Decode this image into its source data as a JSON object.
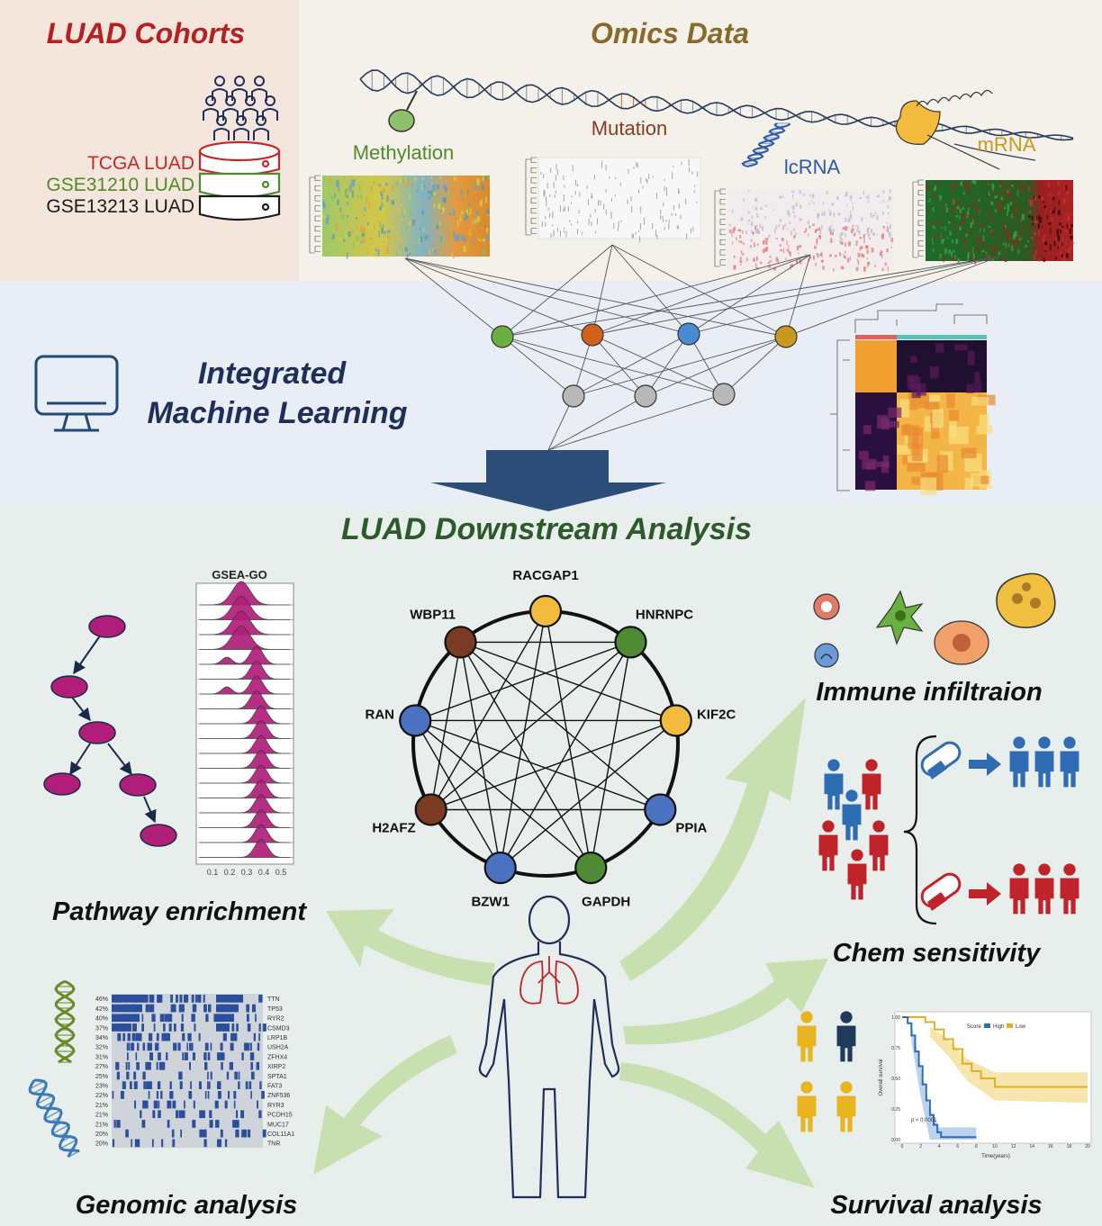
{
  "cohorts": {
    "title": "LUAD Cohorts",
    "items": [
      {
        "label": "TCGA LUAD",
        "color": "#c62828"
      },
      {
        "label": "GSE31210 LUAD",
        "color": "#4f8a2b"
      },
      {
        "label": "GSE13213 LUAD",
        "color": "#1a1a1a"
      }
    ]
  },
  "omics": {
    "title": "Omics Data",
    "labels": {
      "methylation": "Methylation",
      "mutation": "Mutation",
      "lcrna": "lcRNA",
      "mrna": "mRNA"
    }
  },
  "ml": {
    "title_line1": "Integrated",
    "title_line2": "Machine Learning"
  },
  "downstream": {
    "title": "LUAD Downstream Analysis",
    "gsea_title": "GSEA-GO",
    "gsea_ticks": [
      "0.1",
      "0.2",
      "0.3",
      "0.4",
      "0.5"
    ],
    "pathway_label": "Pathway enrichment",
    "immune_label": "Immune infiltraion",
    "chem_label": "Chem sensitivity",
    "genomic_label": "Genomic analysis",
    "survival_label": "Survival analysis"
  },
  "network": {
    "nodes": [
      {
        "label": "RACGAP1",
        "color": "#f2bb3c",
        "angle": 0
      },
      {
        "label": "HNRNPC",
        "color": "#4f8a34",
        "angle": 40
      },
      {
        "label": "KIF2C",
        "color": "#f2bb3c",
        "angle": 80
      },
      {
        "label": "PPIA",
        "color": "#4a72c0",
        "angle": 120
      },
      {
        "label": "GAPDH",
        "color": "#4f8a34",
        "angle": 160
      },
      {
        "label": "BZW1",
        "color": "#4a72c0",
        "angle": 200
      },
      {
        "label": "H2AFZ",
        "color": "#7a3b22",
        "angle": 240
      },
      {
        "label": "RAN",
        "color": "#4a72c0",
        "angle": 280
      },
      {
        "label": "WBP11",
        "color": "#7a3b22",
        "angle": 320
      }
    ],
    "edges": [
      [
        0,
        5
      ],
      [
        0,
        6
      ],
      [
        0,
        4
      ],
      [
        1,
        8
      ],
      [
        1,
        7
      ],
      [
        1,
        6
      ],
      [
        1,
        5
      ],
      [
        1,
        4
      ],
      [
        2,
        7
      ],
      [
        2,
        8
      ],
      [
        2,
        6
      ],
      [
        2,
        5
      ],
      [
        3,
        8
      ],
      [
        3,
        7
      ],
      [
        3,
        6
      ],
      [
        4,
        8
      ],
      [
        4,
        7
      ],
      [
        5,
        8
      ],
      [
        5,
        7
      ],
      [
        6,
        8
      ]
    ]
  },
  "oncoplot": {
    "genes": [
      "TTN",
      "TP53",
      "RYR2",
      "CSMD3",
      "LRP1B",
      "USH2A",
      "ZFHX4",
      "XIRP2",
      "SPTA1",
      "FAT3",
      "ZNF536",
      "RYR3",
      "PCDH15",
      "MUC17",
      "COL11A1",
      "TNR"
    ],
    "percents": [
      "46%",
      "42%",
      "40%",
      "37%",
      "34%",
      "32%",
      "31%",
      "27%",
      "25%",
      "23%",
      "22%",
      "21%",
      "21%",
      "21%",
      "20%",
      "20%"
    ]
  },
  "survival": {
    "legend_title": "Score",
    "legend_high": "High",
    "legend_low": "Low",
    "high_color": "#2e6db4",
    "low_color": "#e0b020",
    "yaxis_label": "Overall survival",
    "xaxis_label": "Time(years)",
    "yticks": [
      "1.00",
      "0.75",
      "0.50",
      "0.25",
      "0.00"
    ],
    "xticks": [
      "0",
      "2",
      "4",
      "6",
      "8",
      "10",
      "12",
      "14",
      "16",
      "18",
      "20"
    ],
    "pvalue": "p < 0.0001"
  },
  "colors": {
    "cohorts_bg": "#f4e6dc",
    "omics_bg": "#f4f1ea",
    "ml_bg": "#e9eef6",
    "downstream_bg": "#e8eeec",
    "arrow_green": "#c8dfb0",
    "big_arrow": "#2b4d78",
    "magenta": "#b01e7a"
  }
}
